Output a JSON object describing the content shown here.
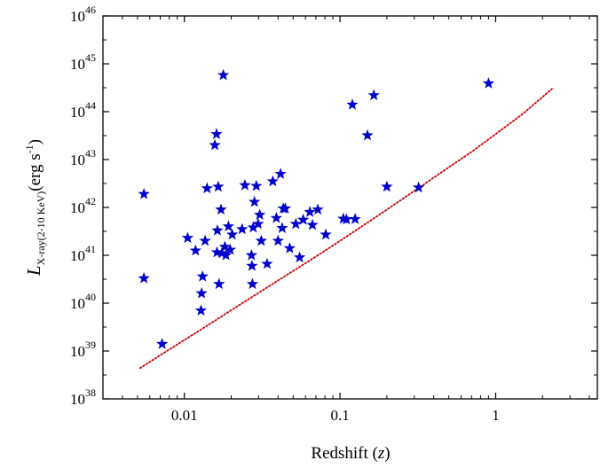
{
  "chart_data": {
    "type": "scatter",
    "xlabel": "Redshift (",
    "xlabel_var": "z",
    "xlabel_close": ")",
    "ylabel_main": "L",
    "ylabel_sub": "X-ray(2-10 KeV)",
    "ylabel_unit": "(erg s",
    "ylabel_unit_exp": "-1",
    "ylabel_unit_close": ")",
    "x_scale": "log",
    "y_scale": "log",
    "xlim": [
      0.003,
      4.5
    ],
    "ylim": [
      1e+38,
      1e+46
    ],
    "x_ticks": [
      {
        "value": 0.01,
        "label": "0.01"
      },
      {
        "value": 0.1,
        "label": "0.1"
      },
      {
        "value": 1,
        "label": "1"
      }
    ],
    "y_ticks": [
      {
        "value": 1e+38,
        "base": "10",
        "exp": "38"
      },
      {
        "value": 1e+39,
        "base": "10",
        "exp": "39"
      },
      {
        "value": 1e+40,
        "base": "10",
        "exp": "40"
      },
      {
        "value": 1e+41,
        "base": "10",
        "exp": "41"
      },
      {
        "value": 1e+42,
        "base": "10",
        "exp": "42"
      },
      {
        "value": 1e+43,
        "base": "10",
        "exp": "43"
      },
      {
        "value": 1e+44,
        "base": "10",
        "exp": "44"
      },
      {
        "value": 1e+45,
        "base": "10",
        "exp": "45"
      },
      {
        "value": 1e+46,
        "base": "10",
        "exp": "46"
      }
    ],
    "grid": false,
    "legend": "none",
    "marker": "star",
    "marker_color": "#0000CD",
    "curve_color": "#CC0000",
    "series": [
      {
        "points": [
          [
            0.0055,
            1.9e+42
          ],
          [
            0.0055,
            3.3e+40
          ],
          [
            0.0072,
            1.4e+39
          ],
          [
            0.0105,
            2.3e+41
          ],
          [
            0.0118,
            1.25e+41
          ],
          [
            0.0128,
            7e+39
          ],
          [
            0.0129,
            1.6e+40
          ],
          [
            0.0131,
            3.6e+40
          ],
          [
            0.0136,
            2e+41
          ],
          [
            0.014,
            2.5e+42
          ],
          [
            0.0157,
            2e+43
          ],
          [
            0.0161,
            3.4e+43
          ],
          [
            0.0165,
            2.7e+42
          ],
          [
            0.0163,
            3.3e+41
          ],
          [
            0.0162,
            1.15e+41
          ],
          [
            0.0167,
            2.5e+40
          ],
          [
            0.0172,
            9e+41
          ],
          [
            0.0174,
            1.1e+41
          ],
          [
            0.0178,
            5.8e+44
          ],
          [
            0.0182,
            1.5e+41
          ],
          [
            0.0185,
            1e+41
          ],
          [
            0.0192,
            4e+41
          ],
          [
            0.0197,
            1.3e+41
          ],
          [
            0.0203,
            2.7e+41
          ],
          [
            0.0235,
            3.5e+41
          ],
          [
            0.0245,
            2.9e+42
          ],
          [
            0.027,
            1e+41
          ],
          [
            0.0272,
            6e+40
          ],
          [
            0.0274,
            2.5e+40
          ],
          [
            0.0277,
            3.8e+41
          ],
          [
            0.0282,
            1.3e+42
          ],
          [
            0.029,
            2.8e+42
          ],
          [
            0.0298,
            4.5e+41
          ],
          [
            0.0305,
            7e+41
          ],
          [
            0.0312,
            2e+41
          ],
          [
            0.034,
            6.6e+40
          ],
          [
            0.037,
            3.5e+42
          ],
          [
            0.039,
            6e+41
          ],
          [
            0.04,
            2e+41
          ],
          [
            0.0415,
            5e+42
          ],
          [
            0.0425,
            3.7e+41
          ],
          [
            0.0432,
            9.5e+41
          ],
          [
            0.0445,
            9.5e+41
          ],
          [
            0.0475,
            1.4e+41
          ],
          [
            0.052,
            4.5e+41
          ],
          [
            0.055,
            9e+40
          ],
          [
            0.058,
            5.5e+41
          ],
          [
            0.064,
            8e+41
          ],
          [
            0.0665,
            4.3e+41
          ],
          [
            0.072,
            9e+41
          ],
          [
            0.081,
            2.7e+41
          ],
          [
            0.105,
            5.8e+41
          ],
          [
            0.11,
            5.6e+41
          ],
          [
            0.12,
            1.4e+44
          ],
          [
            0.125,
            5.7e+41
          ],
          [
            0.15,
            3.2e+43
          ],
          [
            0.165,
            2.2e+44
          ],
          [
            0.2,
            2.7e+42
          ],
          [
            0.32,
            2.6e+42
          ],
          [
            0.9,
            3.9e+44
          ]
        ]
      }
    ],
    "curve": {
      "style": "dotted",
      "points": [
        [
          0.0052,
          4.4e+38
        ],
        [
          0.007,
          8.2e+38
        ],
        [
          0.01,
          1.7e+39
        ],
        [
          0.015,
          3.9e+39
        ],
        [
          0.02,
          7.1e+39
        ],
        [
          0.03,
          1.65e+40
        ],
        [
          0.05,
          4.7e+40
        ],
        [
          0.07,
          9.4e+40
        ],
        [
          0.1,
          2e+41
        ],
        [
          0.15,
          4.8e+41
        ],
        [
          0.2,
          9e+41
        ],
        [
          0.3,
          2.2e+42
        ],
        [
          0.5,
          6.9e+42
        ],
        [
          0.7,
          1.45e+43
        ],
        [
          1.0,
          3.4e+43
        ],
        [
          1.5,
          9.1e+43
        ],
        [
          2.3,
          3e+44
        ]
      ]
    }
  }
}
